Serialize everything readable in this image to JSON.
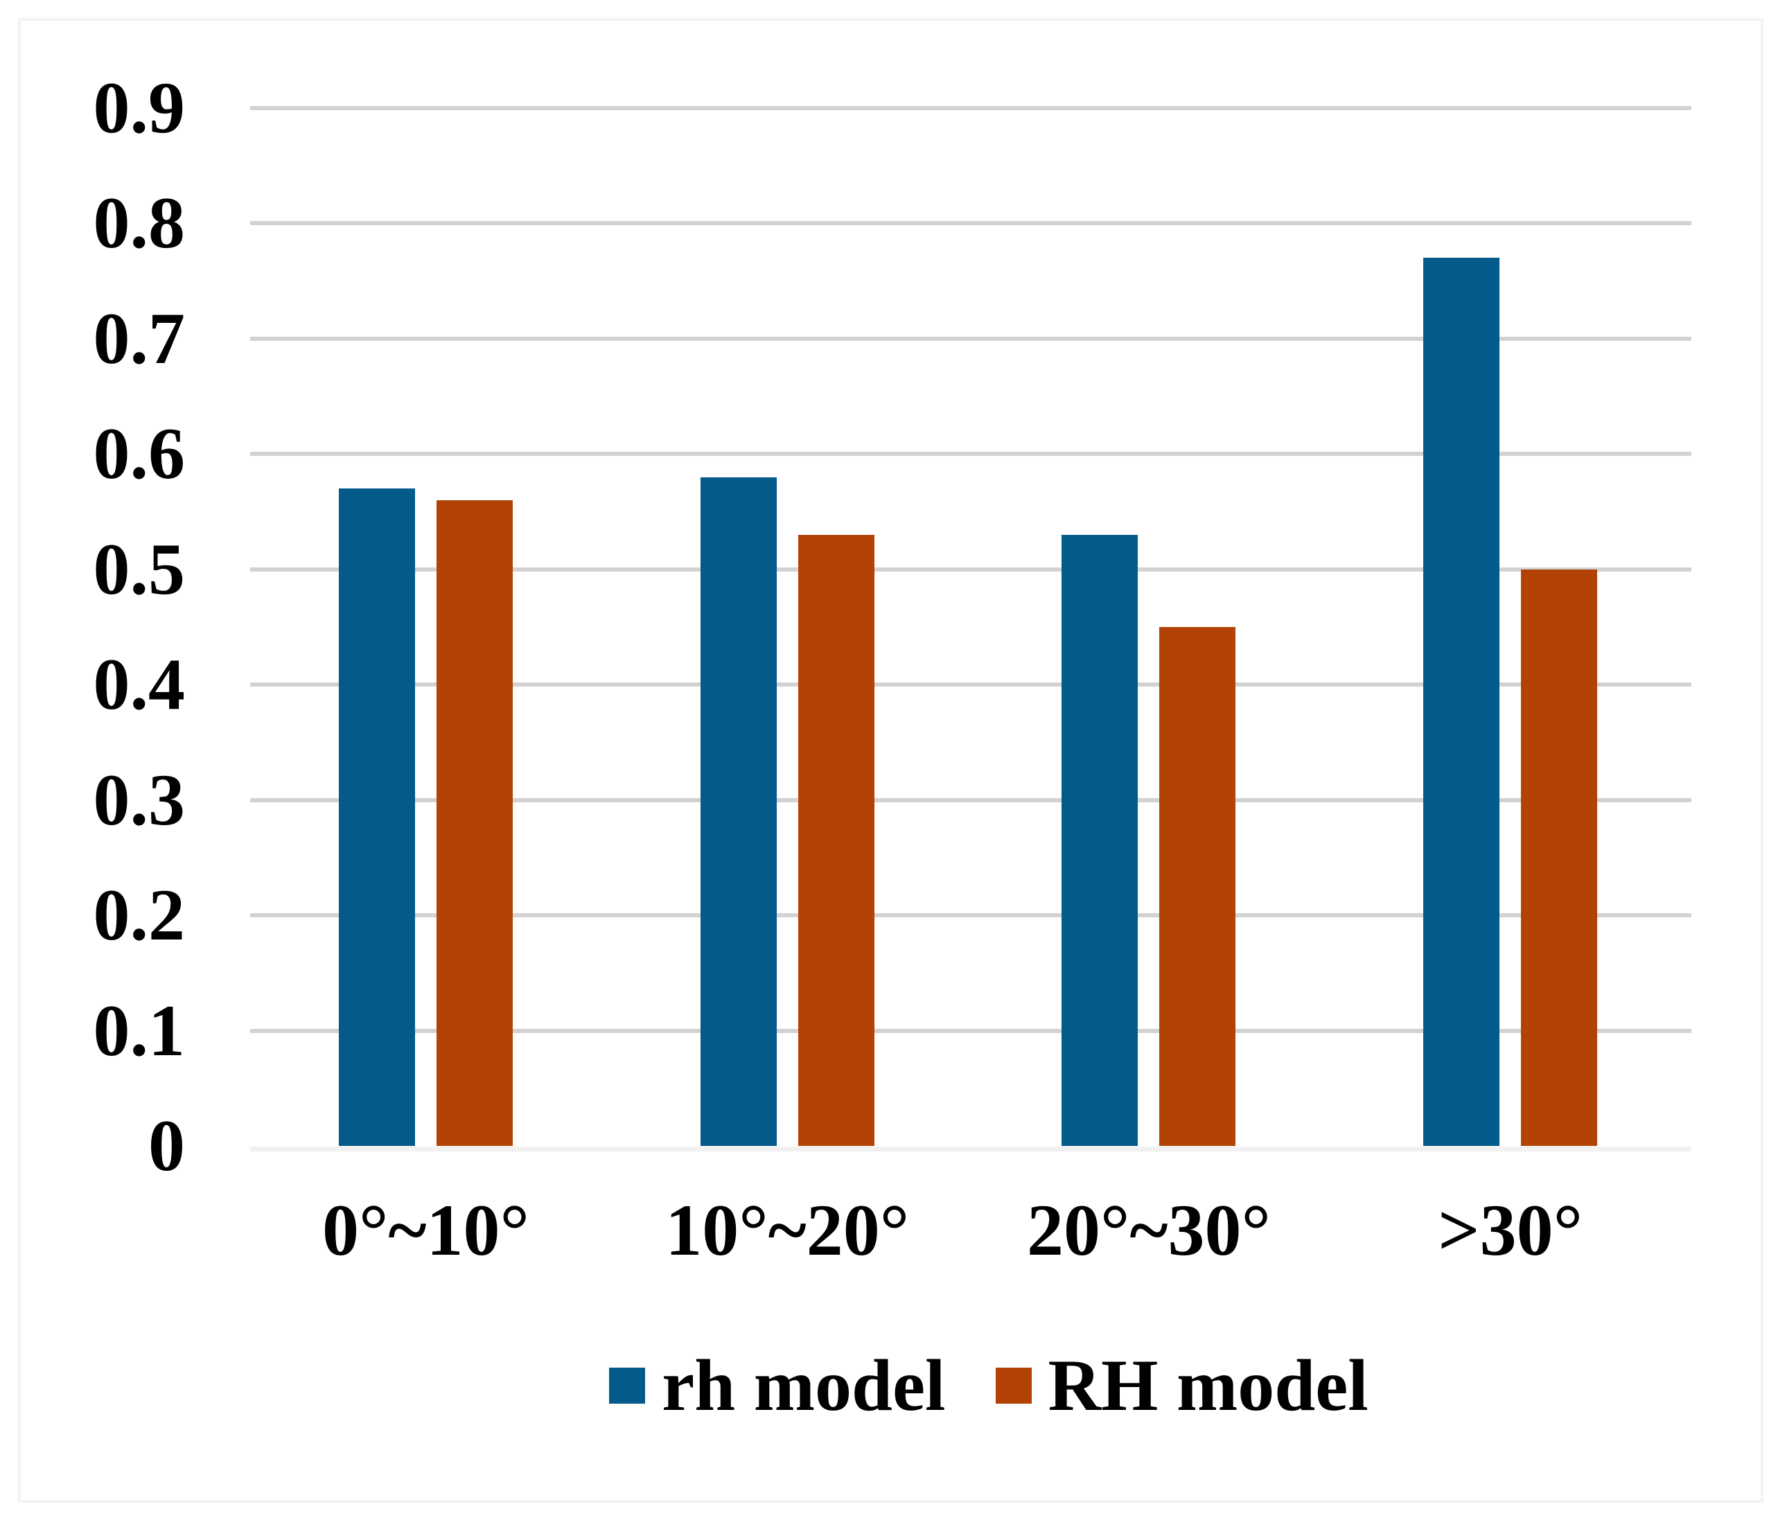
{
  "figure": {
    "background": "#ffffff",
    "frame_color": "#f3f3f3",
    "gridline_color": "#d2d2d2",
    "axis_line_color": "#f1f1f1",
    "text_color": "#000000"
  },
  "chart_data": {
    "type": "bar",
    "title": "",
    "xlabel": "",
    "ylabel": "",
    "categories": [
      "0°~10°",
      "10°~20°",
      "20°~30°",
      ">30°"
    ],
    "series": [
      {
        "name": "rh model",
        "color": "#055A8C",
        "values": [
          0.57,
          0.58,
          0.53,
          0.77
        ]
      },
      {
        "name": "RH model",
        "color": "#B24205",
        "values": [
          0.56,
          0.53,
          0.45,
          0.5
        ]
      }
    ],
    "ylim": [
      0,
      0.9
    ],
    "ytick_step": 0.1,
    "ytick_labels": [
      "0",
      "0.1",
      "0.2",
      "0.3",
      "0.4",
      "0.5",
      "0.6",
      "0.7",
      "0.8",
      "0.9"
    ],
    "grid": "horizontal",
    "legend_position": "bottom"
  },
  "legend": {
    "items": [
      {
        "label": "rh model"
      },
      {
        "label": "RH model"
      }
    ]
  }
}
